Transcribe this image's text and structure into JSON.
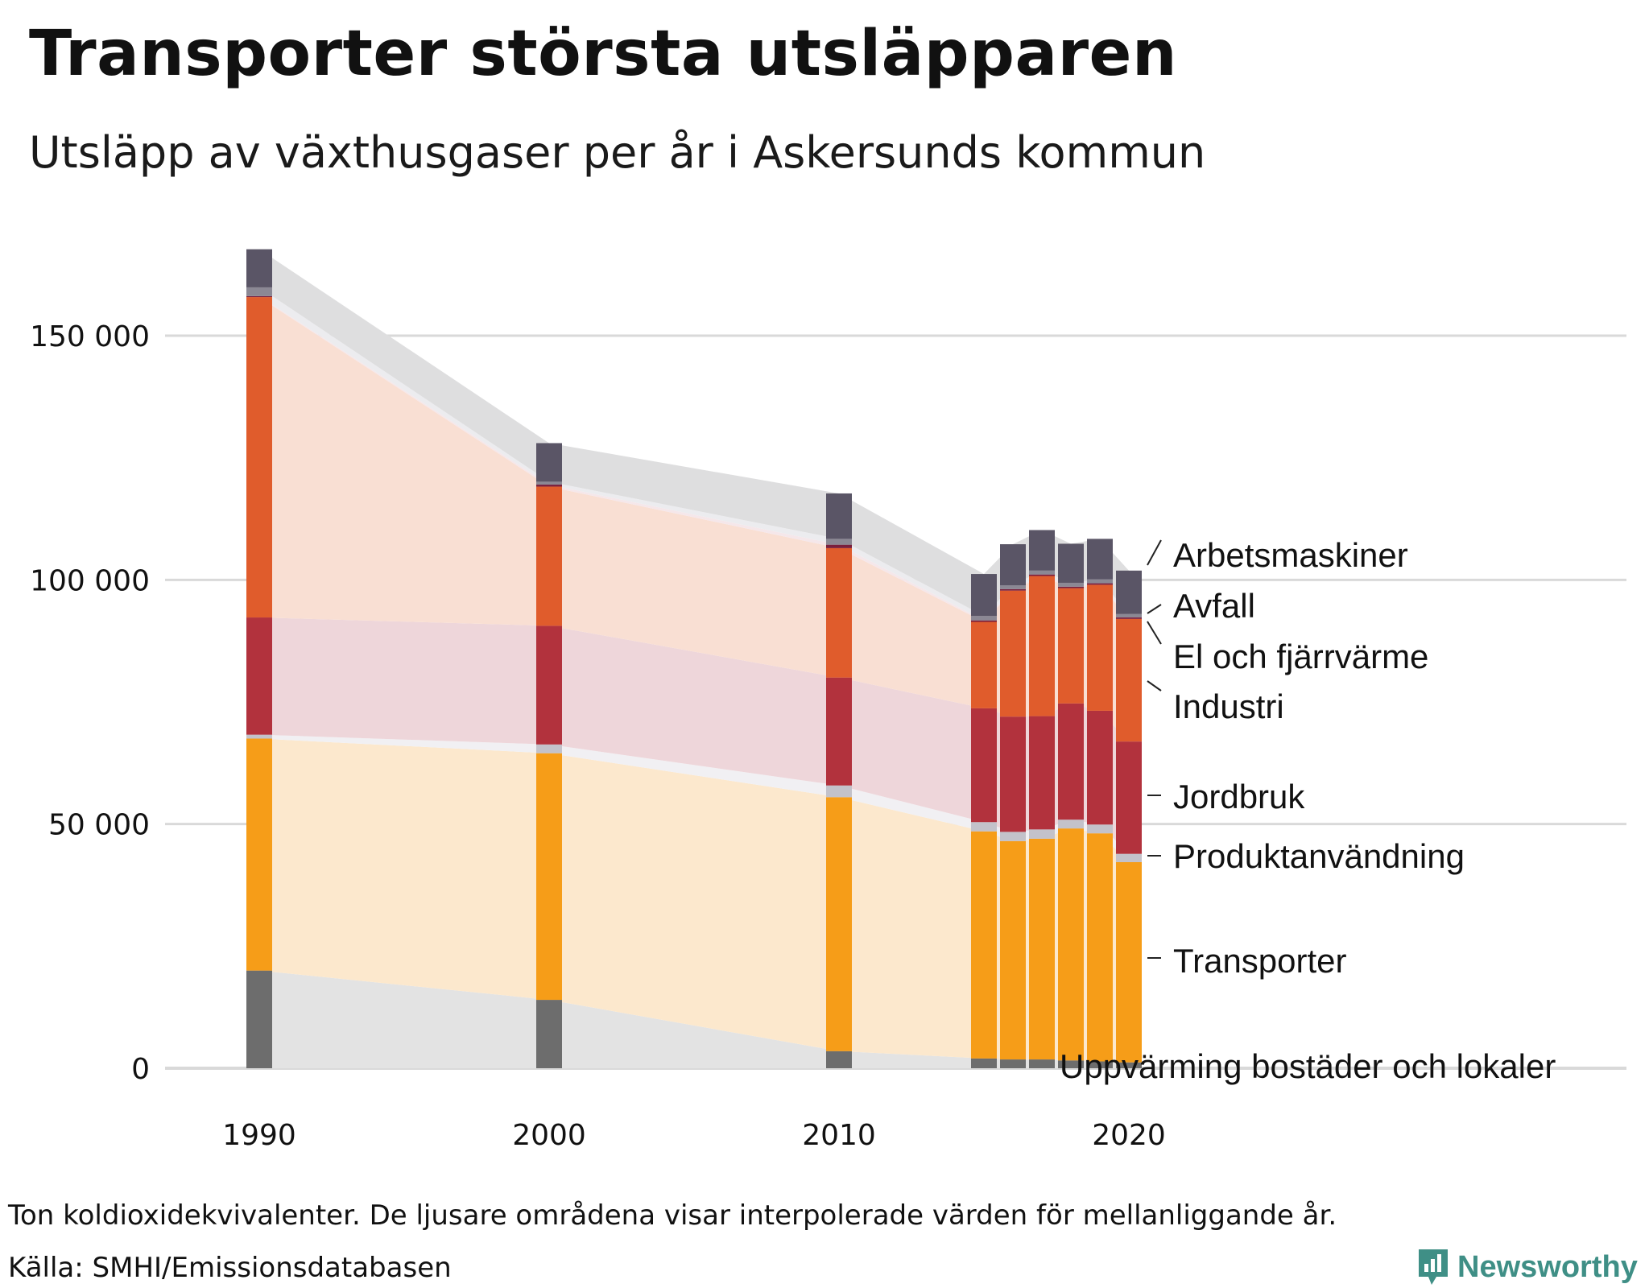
{
  "chart_data": {
    "type": "bar",
    "title": "Transporter största utsläpparen",
    "subtitle": "Utsläpp av växthusgaser per år i Askersunds kommun",
    "xlabel": "",
    "ylabel": "",
    "unit": "Ton koldioxidekvivalenter",
    "stacked": true,
    "x": [
      1990,
      2000,
      2010,
      2015,
      2016,
      2017,
      2018,
      2019,
      2020
    ],
    "xticks": [
      "1990",
      "2000",
      "2010",
      "2020"
    ],
    "yticks": [
      "0",
      "50 000",
      "100 000",
      "150 000"
    ],
    "ylim": [
      0,
      168000
    ],
    "series": [
      {
        "name": "Uppvärming bostäder och lokaler",
        "color": "#6d6d6d",
        "light": "#e3e3e3",
        "values": [
          20000,
          14000,
          3500,
          2000,
          1800,
          1800,
          1600,
          1400,
          1200
        ]
      },
      {
        "name": "Transporter",
        "color": "#f69d18",
        "light": "#fce8cd",
        "values": [
          47500,
          50500,
          52000,
          46500,
          44700,
          45200,
          47500,
          46700,
          41000
        ]
      },
      {
        "name": "Produktanvändning",
        "color": "#c3c2ca",
        "light": "#f1f0f3",
        "values": [
          800,
          1800,
          2400,
          1900,
          1900,
          1900,
          1800,
          1800,
          1700
        ]
      },
      {
        "name": "Jordbruk",
        "color": "#b2323d",
        "light": "#eed6da",
        "values": [
          24000,
          24300,
          22100,
          23300,
          23600,
          23200,
          23800,
          23300,
          23000
        ]
      },
      {
        "name": "Industri",
        "color": "#e05c2c",
        "light": "#f9dfd3",
        "values": [
          65600,
          28500,
          26500,
          17700,
          25800,
          28700,
          23600,
          25800,
          25100
        ]
      },
      {
        "name": "El och fjärrvärme",
        "color": "#7a1f3d",
        "light": "#f5e7ea",
        "values": [
          200,
          400,
          700,
          300,
          300,
          300,
          300,
          300,
          300
        ]
      },
      {
        "name": "Avfall",
        "color": "#8b8894",
        "light": "#ececef",
        "values": [
          1800,
          600,
          1200,
          900,
          800,
          800,
          800,
          800,
          700
        ]
      },
      {
        "name": "Arbetsmaskiner",
        "color": "#5a5566",
        "light": "#dededf",
        "values": [
          7800,
          7900,
          9300,
          8600,
          8400,
          8300,
          8000,
          8300,
          8900
        ]
      }
    ],
    "legend_labels": [
      "Arbetsmaskiner",
      "Avfall",
      "El och fjärrvärme",
      "Industri",
      "Jordbruk",
      "Produktanvändning",
      "Transporter",
      "Uppvärming bostäder och lokaler"
    ],
    "legend_placement": "right"
  },
  "footer": {
    "note": "Ton koldioxidekvivalenter. De ljusare områdena visar interpolerade värden för mellanliggande år.",
    "source": "Källa: SMHI/Emissionsdatabasen",
    "brand": "Newsworthy",
    "brand_color": "#3f8f86"
  }
}
